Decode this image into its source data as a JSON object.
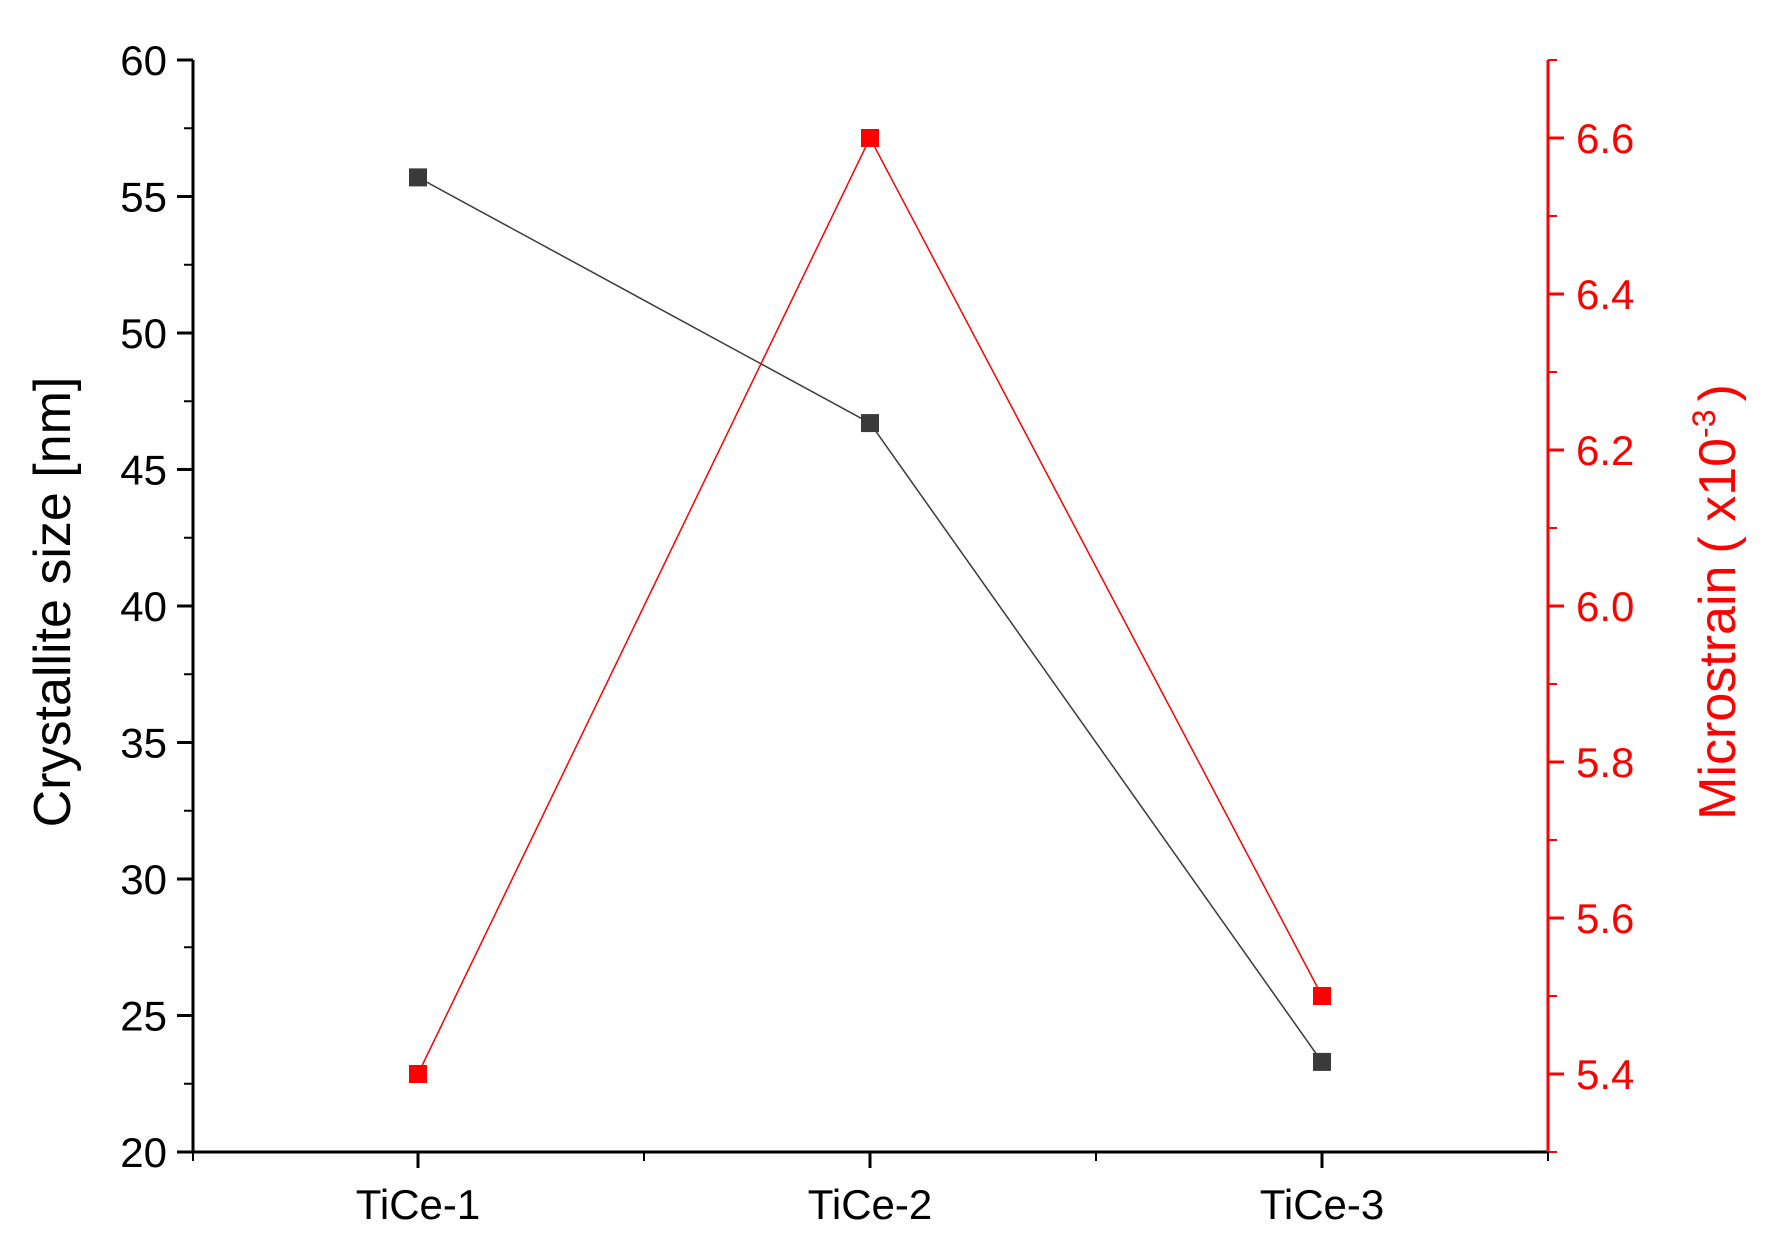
{
  "chart_data": {
    "type": "line",
    "categories": [
      "TiCe-1",
      "TiCe-2",
      "TiCe-3"
    ],
    "series": [
      {
        "axis": "left",
        "color": "#3a3a3a",
        "marker": "square",
        "values": [
          55.7,
          46.7,
          23.3
        ]
      },
      {
        "axis": "right",
        "color": "#ff0000",
        "marker": "square",
        "values": [
          5.4,
          6.6,
          5.5
        ]
      }
    ],
    "ylabel": "Crystallite size [nm]",
    "y2label_text": "Microstrain",
    "y2label_unit_base": "( x10",
    "y2label_unit_exp": "-3",
    "y2label_unit_close": ")",
    "ylim": [
      20,
      60
    ],
    "y2lim": [
      5.3,
      6.7
    ],
    "yticks": [
      "20",
      "25",
      "30",
      "35",
      "40",
      "45",
      "50",
      "55",
      "60"
    ],
    "y2ticks": [
      "5.4",
      "5.6",
      "5.8",
      "6.0",
      "6.2",
      "6.4",
      "6.6"
    ],
    "axis_color_left": "#000000",
    "axis_color_right": "#ff0000",
    "grid": false,
    "legend": "none"
  }
}
